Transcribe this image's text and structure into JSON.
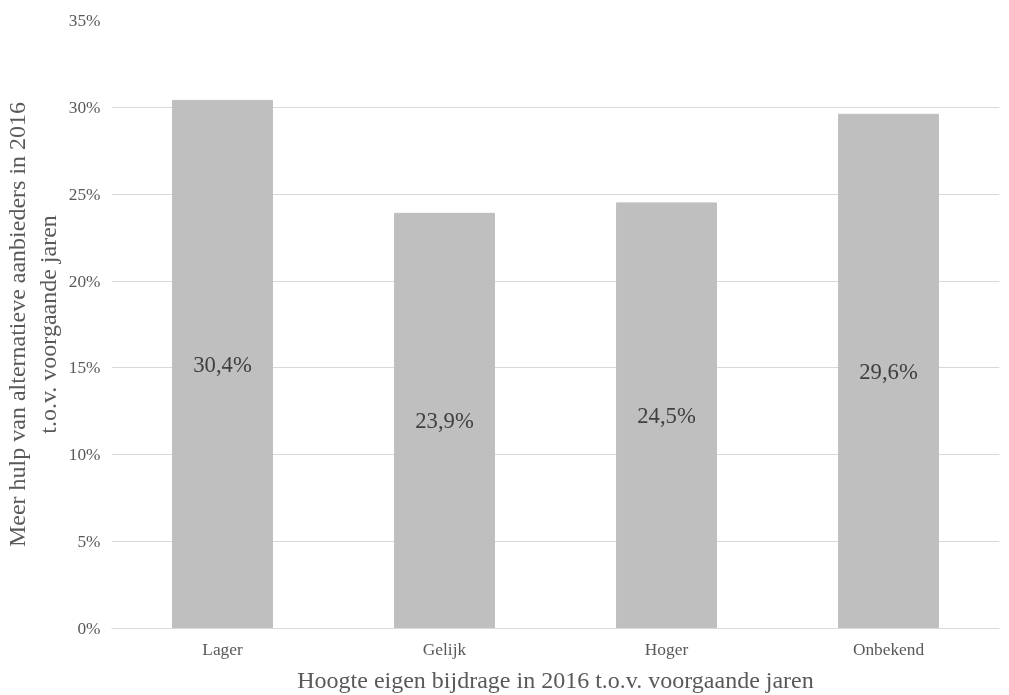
{
  "chart_data": {
    "type": "bar",
    "xlabel": "Hoogte eigen bijdrage in 2016 t.o.v. voorgaande jaren",
    "ylabel": "Meer hulp van alternatieve aanbieders in 2016\nt.o.v. voorgaande jaren",
    "categories": [
      "Lager",
      "Gelijk",
      "Hoger",
      "Onbekend"
    ],
    "values": [
      30.4,
      23.9,
      24.5,
      29.6
    ],
    "value_labels": [
      "30,4%",
      "23,9%",
      "24,5%",
      "29,6%"
    ],
    "color": "#bfbfbf",
    "ylim": [
      0,
      35
    ],
    "yticks": [
      {
        "value": 0,
        "label": "0%"
      },
      {
        "value": 5,
        "label": "5%"
      },
      {
        "value": 10,
        "label": "10%"
      },
      {
        "value": 15,
        "label": "15%"
      },
      {
        "value": 20,
        "label": "20%"
      },
      {
        "value": 25,
        "label": "25%"
      },
      {
        "value": 30,
        "label": "30%"
      },
      {
        "value": 35,
        "label": "35%"
      }
    ],
    "grid": "y"
  }
}
